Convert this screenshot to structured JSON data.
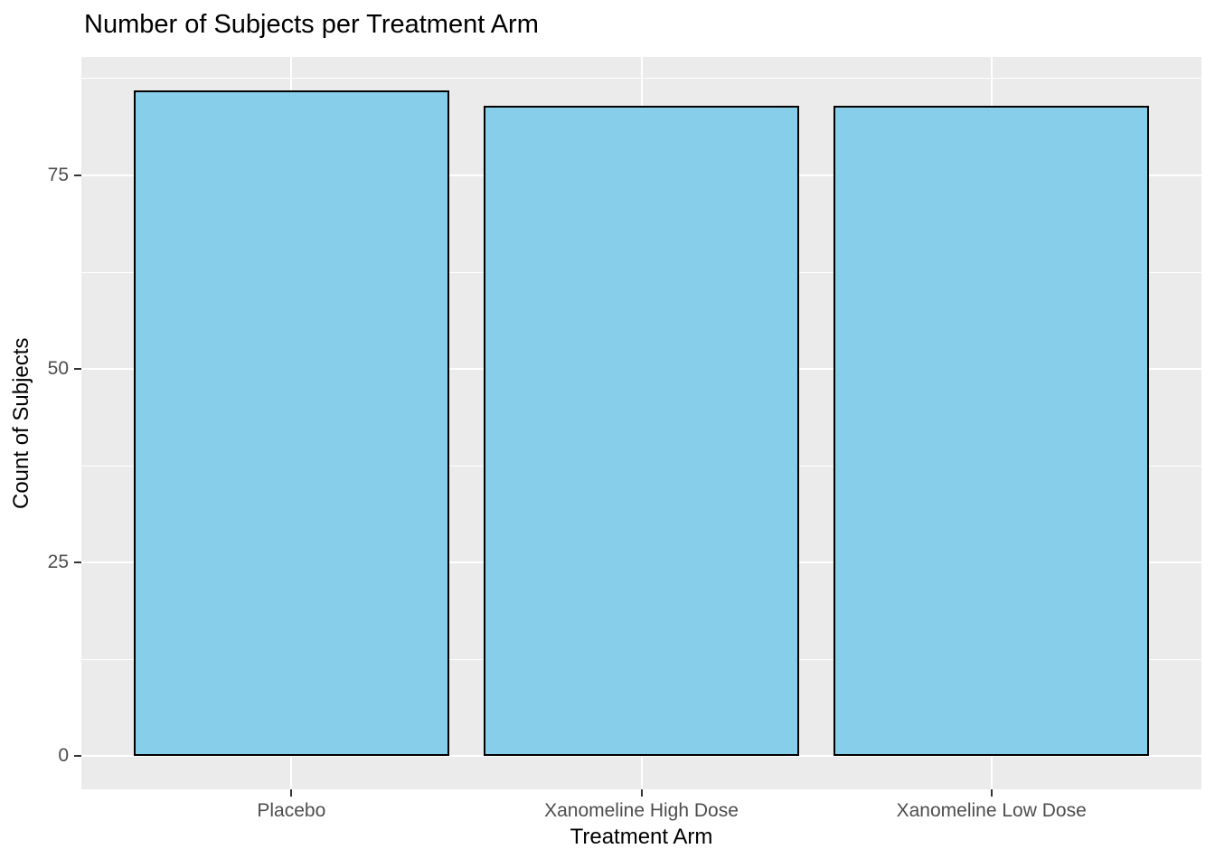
{
  "chart_data": {
    "type": "bar",
    "title": "Number of Subjects per Treatment Arm",
    "xlabel": "Treatment Arm",
    "ylabel": "Count of Subjects",
    "categories": [
      "Placebo",
      "Xanomeline High Dose",
      "Xanomeline Low Dose"
    ],
    "values": [
      86,
      84,
      84
    ],
    "yticks": [
      0,
      25,
      50,
      75
    ],
    "yticks_minor": [
      12.5,
      37.5,
      62.5,
      87.5
    ],
    "ylim": [
      -4.3,
      90.3
    ],
    "grid": "on",
    "legend": "none",
    "bar_width_fraction": 0.9,
    "colors": {
      "bar_fill": "#87CEEB",
      "bar_stroke": "#000000",
      "panel_background": "#EBEBEB",
      "gridline": "#FFFFFF",
      "tick_mark": "#333333",
      "axis_text": "#4D4D4D",
      "title_text": "#000000"
    }
  }
}
